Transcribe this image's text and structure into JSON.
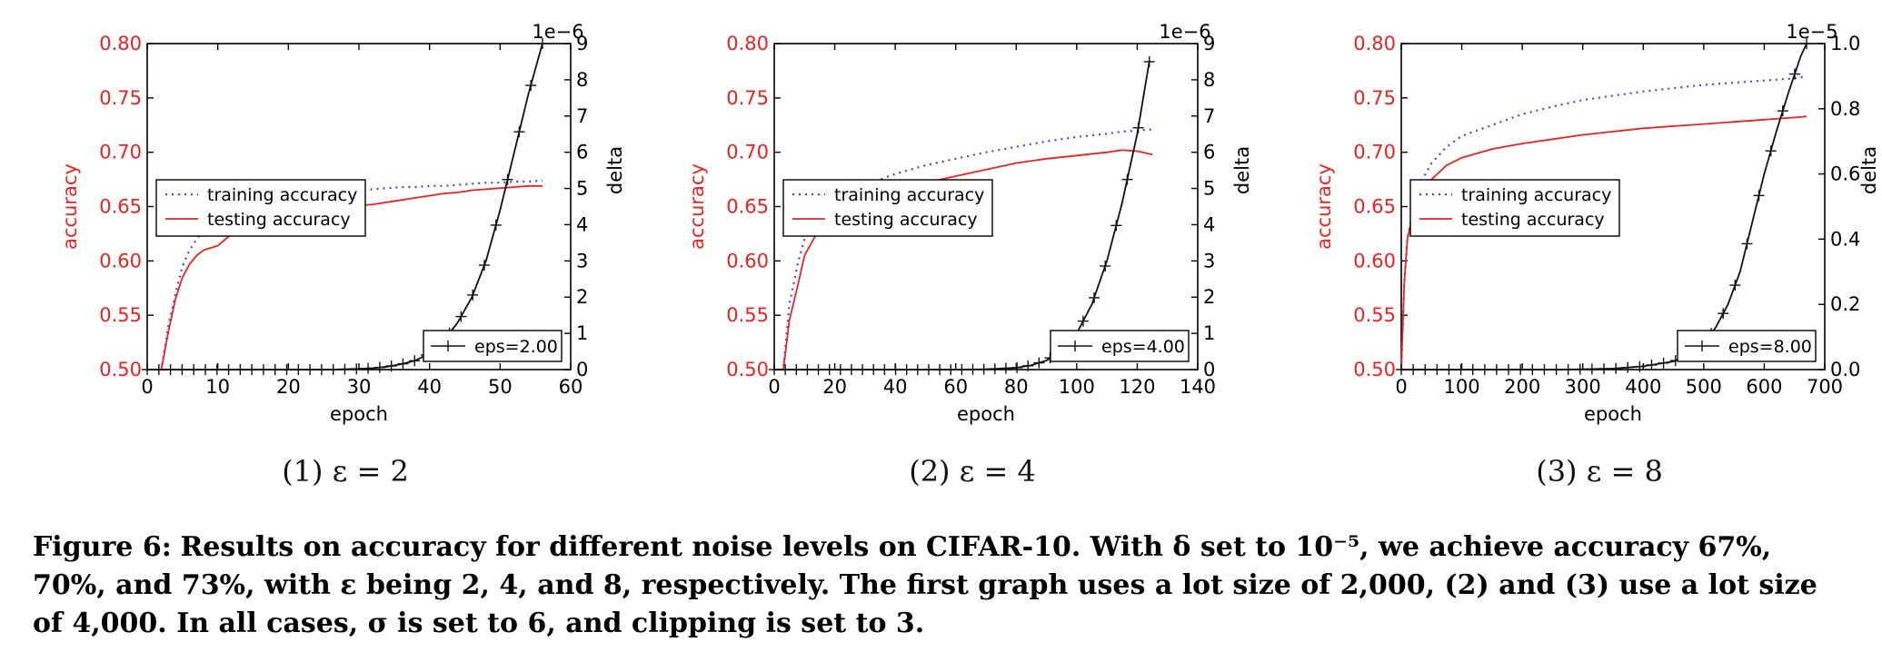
{
  "figure": {
    "caption_label": "Figure 6:",
    "caption_text": "Results on accuracy for different noise levels on CIFAR-10. With δ set to 10⁻⁵, we achieve accuracy 67%, 70%, and 73%, with ε being 2, 4, and 8, respectively. The first graph uses a lot size of 2,000, (2) and (3) use a lot size of 4,000. In all cases, σ is set to 6, and clipping is set to 3."
  },
  "chart_data": [
    {
      "type": "line",
      "subcaption": "(1) ε = 2",
      "xlabel": "epoch",
      "ylabel": "accuracy",
      "y2label": "delta",
      "y2_multiplier_label": "1e−6",
      "xlim": [
        0,
        60
      ],
      "xticks": [
        "0",
        "10",
        "20",
        "30",
        "40",
        "50",
        "60"
      ],
      "ylim": [
        0.5,
        0.8
      ],
      "yticks": [
        "0.50",
        "0.55",
        "0.60",
        "0.65",
        "0.70",
        "0.75",
        "0.80"
      ],
      "y2lim": [
        0,
        9
      ],
      "y2ticks": [
        "0",
        "1",
        "2",
        "3",
        "4",
        "5",
        "6",
        "7",
        "8",
        "9"
      ],
      "legend_upper": [
        "training accuracy",
        "testing accuracy"
      ],
      "legend_lower": [
        "eps=2.00"
      ],
      "colors": {
        "train": "#4444ee",
        "test": "#ee2222",
        "eps": "#111111",
        "axis_left": "#ee2222"
      },
      "series": [
        {
          "name": "training accuracy",
          "x": [
            0,
            1,
            2,
            3,
            4,
            5,
            6,
            7,
            8,
            9,
            10,
            12,
            14,
            16,
            18,
            20,
            22,
            24,
            26,
            28,
            30,
            32,
            34,
            36,
            38,
            40,
            42,
            44,
            46,
            48,
            50,
            52,
            54,
            56
          ],
          "values": [
            0.5,
            0.5,
            0.5,
            0.54,
            0.57,
            0.595,
            0.61,
            0.62,
            0.63,
            0.635,
            0.64,
            0.645,
            0.65,
            0.653,
            0.655,
            0.657,
            0.66,
            0.661,
            0.663,
            0.664,
            0.665,
            0.666,
            0.667,
            0.668,
            0.668,
            0.669,
            0.669,
            0.67,
            0.671,
            0.672,
            0.672,
            0.673,
            0.673,
            0.674
          ]
        },
        {
          "name": "testing accuracy",
          "x": [
            0,
            1,
            2,
            3,
            4,
            5,
            6,
            7,
            8,
            9,
            10,
            12,
            14,
            16,
            18,
            20,
            22,
            24,
            26,
            28,
            30,
            32,
            34,
            36,
            38,
            40,
            42,
            44,
            46,
            48,
            50,
            52,
            54,
            56
          ],
          "values": [
            0.5,
            0.5,
            0.5,
            0.535,
            0.565,
            0.585,
            0.597,
            0.605,
            0.61,
            0.612,
            0.614,
            0.625,
            0.632,
            0.637,
            0.64,
            0.643,
            0.645,
            0.647,
            0.648,
            0.65,
            0.651,
            0.652,
            0.654,
            0.656,
            0.658,
            0.66,
            0.662,
            0.663,
            0.665,
            0.666,
            0.667,
            0.668,
            0.669,
            0.669
          ]
        },
        {
          "name": "eps=2.00",
          "axis": "right",
          "x": [
            0,
            2,
            4,
            6,
            8,
            10,
            12,
            14,
            16,
            18,
            20,
            22,
            24,
            26,
            28,
            30,
            32,
            34,
            36,
            38,
            40,
            42,
            44,
            46,
            48,
            50,
            52,
            54,
            56
          ],
          "values": [
            0,
            0,
            0,
            0,
            0,
            0,
            0,
            0,
            0,
            0,
            0,
            0,
            0,
            0,
            0.01,
            0.02,
            0.04,
            0.08,
            0.15,
            0.25,
            0.45,
            0.8,
            1.3,
            2.0,
            3.0,
            4.4,
            6.0,
            7.6,
            9.0
          ]
        }
      ]
    },
    {
      "type": "line",
      "subcaption": "(2) ε = 4",
      "xlabel": "epoch",
      "ylabel": "accuracy",
      "y2label": "delta",
      "y2_multiplier_label": "1e−6",
      "xlim": [
        0,
        140
      ],
      "xticks": [
        "0",
        "20",
        "40",
        "60",
        "80",
        "100",
        "120",
        "140"
      ],
      "ylim": [
        0.5,
        0.8
      ],
      "yticks": [
        "0.50",
        "0.55",
        "0.60",
        "0.65",
        "0.70",
        "0.75",
        "0.80"
      ],
      "y2lim": [
        0,
        9
      ],
      "y2ticks": [
        "0",
        "1",
        "2",
        "3",
        "4",
        "5",
        "6",
        "7",
        "8",
        "9"
      ],
      "legend_upper": [
        "training accuracy",
        "testing accuracy"
      ],
      "legend_lower": [
        "eps=4.00"
      ],
      "colors": {
        "train": "#4444ee",
        "test": "#ee2222",
        "eps": "#111111",
        "axis_left": "#ee2222"
      },
      "series": [
        {
          "name": "training accuracy",
          "x": [
            0,
            3,
            5,
            8,
            10,
            15,
            20,
            25,
            30,
            40,
            50,
            60,
            70,
            80,
            90,
            100,
            110,
            115,
            120,
            125
          ],
          "values": [
            0.5,
            0.5,
            0.56,
            0.6,
            0.62,
            0.64,
            0.655,
            0.663,
            0.67,
            0.68,
            0.688,
            0.694,
            0.7,
            0.705,
            0.71,
            0.714,
            0.717,
            0.719,
            0.72,
            0.721
          ]
        },
        {
          "name": "testing accuracy",
          "x": [
            0,
            3,
            5,
            8,
            10,
            15,
            20,
            25,
            30,
            40,
            50,
            60,
            70,
            80,
            90,
            100,
            110,
            115,
            120,
            125
          ],
          "values": [
            0.5,
            0.5,
            0.545,
            0.58,
            0.605,
            0.63,
            0.645,
            0.655,
            0.66,
            0.667,
            0.672,
            0.678,
            0.684,
            0.69,
            0.694,
            0.697,
            0.7,
            0.702,
            0.701,
            0.698
          ]
        },
        {
          "name": "eps=4.00",
          "axis": "right",
          "x": [
            0,
            10,
            20,
            30,
            40,
            50,
            60,
            70,
            80,
            85,
            90,
            95,
            100,
            105,
            110,
            115,
            120,
            124
          ],
          "values": [
            0,
            0,
            0,
            0,
            0,
            0,
            0,
            0.01,
            0.05,
            0.12,
            0.25,
            0.55,
            1.0,
            1.8,
            3.0,
            4.6,
            6.5,
            8.5
          ]
        }
      ]
    },
    {
      "type": "line",
      "subcaption": "(3) ε = 8",
      "xlabel": "epoch",
      "ylabel": "accuracy",
      "y2label": "delta",
      "y2_multiplier_label": "1e−5",
      "xlim": [
        0,
        700
      ],
      "xticks": [
        "0",
        "100",
        "200",
        "300",
        "400",
        "500",
        "600",
        "700"
      ],
      "ylim": [
        0.5,
        0.8
      ],
      "yticks": [
        "0.50",
        "0.55",
        "0.60",
        "0.65",
        "0.70",
        "0.75",
        "0.80"
      ],
      "y2lim": [
        0,
        1.0
      ],
      "y2ticks": [
        "0.0",
        "0.2",
        "0.4",
        "0.6",
        "0.8",
        "1.0"
      ],
      "legend_upper": [
        "training accuracy",
        "testing accuracy"
      ],
      "legend_lower": [
        "eps=8.00"
      ],
      "colors": {
        "train": "#4444ee",
        "test": "#ee2222",
        "eps": "#111111",
        "axis_left": "#ee2222"
      },
      "series": [
        {
          "name": "training accuracy",
          "x": [
            0,
            5,
            10,
            20,
            30,
            50,
            75,
            100,
            150,
            200,
            250,
            300,
            350,
            400,
            450,
            500,
            550,
            600,
            650,
            670
          ],
          "values": [
            0.5,
            0.58,
            0.62,
            0.65,
            0.67,
            0.69,
            0.705,
            0.715,
            0.725,
            0.735,
            0.742,
            0.748,
            0.752,
            0.756,
            0.759,
            0.762,
            0.764,
            0.766,
            0.768,
            0.77
          ]
        },
        {
          "name": "testing accuracy",
          "x": [
            0,
            5,
            10,
            20,
            30,
            50,
            75,
            100,
            150,
            200,
            250,
            300,
            350,
            400,
            450,
            500,
            550,
            600,
            650,
            670
          ],
          "values": [
            0.5,
            0.58,
            0.62,
            0.645,
            0.66,
            0.675,
            0.688,
            0.695,
            0.703,
            0.708,
            0.712,
            0.716,
            0.719,
            0.722,
            0.724,
            0.726,
            0.728,
            0.73,
            0.732,
            0.733
          ]
        },
        {
          "name": "eps=8.00",
          "axis": "right",
          "x": [
            0,
            50,
            100,
            150,
            200,
            250,
            300,
            350,
            400,
            450,
            480,
            500,
            520,
            540,
            560,
            580,
            600,
            620,
            640,
            660,
            670
          ],
          "values": [
            0,
            0,
            0,
            0,
            0,
            0,
            0.001,
            0.003,
            0.01,
            0.025,
            0.05,
            0.08,
            0.13,
            0.2,
            0.3,
            0.45,
            0.6,
            0.73,
            0.85,
            0.96,
            1.0
          ]
        }
      ]
    }
  ]
}
